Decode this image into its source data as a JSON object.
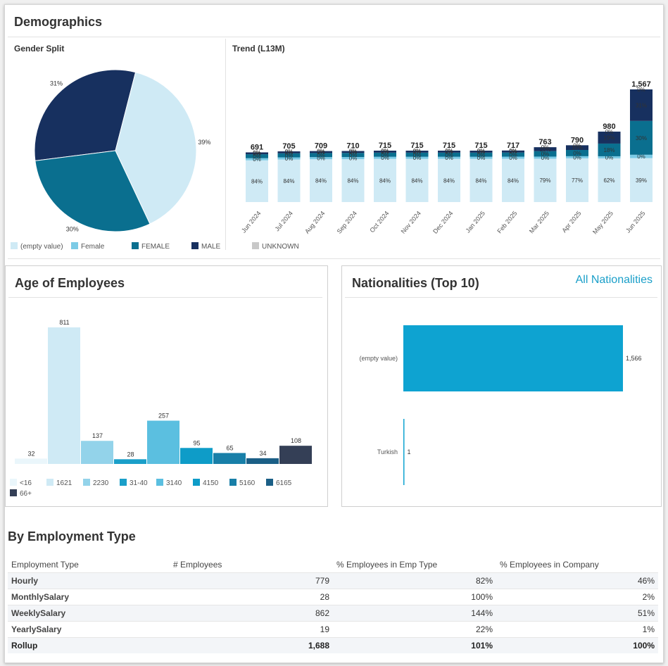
{
  "demographics": {
    "title": "Demographics",
    "gender": {
      "title": "Gender Split",
      "slices": [
        {
          "label": "31%",
          "value": 31,
          "color": "#17305f"
        },
        {
          "label": "39%",
          "value": 39,
          "color": "#cfeaf5"
        },
        {
          "label": "30%",
          "value": 30,
          "color": "#0a6f8f"
        }
      ]
    },
    "legend": [
      {
        "label": "(empty value)",
        "color": "#cfeaf5"
      },
      {
        "label": "Female",
        "color": "#7ccbe6"
      },
      {
        "label": "FEMALE",
        "color": "#0a6f8f"
      },
      {
        "label": "MALE",
        "color": "#17305f"
      },
      {
        "label": "UNKNOWN",
        "color": "#c8c8c8"
      }
    ],
    "trend": {
      "title": "Trend (L13M)",
      "months": [
        "Jun 2024",
        "Jul 2024",
        "Aug 2024",
        "Sep 2024",
        "Oct 2024",
        "Nov 2024",
        "Dec 2024",
        "Jan 2025",
        "Feb 2025",
        "Mar 2025",
        "Apr 2025",
        "May 2025",
        "Jun 2025"
      ],
      "totals": [
        "691",
        "705",
        "709",
        "710",
        "715",
        "715",
        "715",
        "715",
        "717",
        "763",
        "790",
        "980",
        "1,567"
      ],
      "total_values": [
        691,
        705,
        709,
        710,
        715,
        715,
        715,
        715,
        717,
        763,
        790,
        980,
        1567
      ],
      "empty_pct": [
        "84%",
        "84%",
        "84%",
        "84%",
        "84%",
        "84%",
        "84%",
        "84%",
        "84%",
        "79%",
        "77%",
        "62%",
        "39%"
      ],
      "empty_values": [
        84,
        84,
        84,
        84,
        84,
        84,
        84,
        84,
        84,
        79,
        77,
        62,
        39
      ],
      "female_pct": [
        "0%",
        "0%",
        "0%",
        "0%",
        "0%",
        "0%",
        "0%",
        "0%",
        "0%",
        "0%",
        "0%",
        "0%",
        "0%"
      ],
      "upper_pct": [
        [
          "0%",
          "0%",
          "0%"
        ],
        [
          "0%",
          "0%",
          "0%"
        ],
        [
          "0%",
          "0%",
          "0%"
        ],
        [
          "0%",
          "0%",
          "0%"
        ],
        [
          "0%",
          "0%",
          "0%"
        ],
        [
          "0%",
          "0%",
          "0%"
        ],
        [
          "0%",
          "0%",
          "0%"
        ],
        [
          "0%",
          "0%",
          "0%"
        ],
        [
          "0%",
          "0%",
          "0%"
        ],
        [
          "0%",
          "10%",
          "0%"
        ],
        [
          "0%",
          "10%",
          "0%"
        ],
        [
          "0%",
          "19%",
          "18%"
        ],
        [
          "0%",
          "31%",
          "30%"
        ]
      ],
      "female_cap_values": [
        8,
        8,
        8,
        8,
        8,
        8,
        8,
        8,
        8,
        10,
        11,
        18,
        30
      ],
      "male_values": [
        8,
        8,
        8,
        8,
        8,
        8,
        8,
        8,
        8,
        11,
        12,
        19,
        31
      ]
    }
  },
  "age": {
    "title": "Age of Employees",
    "chart_data": {
      "type": "bar",
      "categories": [
        "<16",
        "1621",
        "2230",
        "31-40",
        "3140",
        "4150",
        "5160",
        "6165",
        "66+"
      ],
      "values": [
        32,
        811,
        137,
        28,
        257,
        95,
        65,
        34,
        108
      ],
      "colors": [
        "#eaf6fb",
        "#cfeaf5",
        "#93d3ea",
        "#1a9fc9",
        "#5bbfe0",
        "#0e9cc8",
        "#187fa8",
        "#1b5f86",
        "#343f56"
      ]
    }
  },
  "nationalities": {
    "title": "Nationalities (Top 10)",
    "link": "All Nationalities",
    "chart_data": {
      "type": "bar",
      "categories": [
        "(empty value)",
        "Turkish"
      ],
      "values": [
        1566,
        1
      ],
      "value_labels": [
        "1,566",
        "1"
      ],
      "color": "#0ea3d1"
    }
  },
  "employment": {
    "title": "By Employment Type",
    "headers": [
      "Employment Type",
      "# Employees",
      "% Employees in Emp Type",
      "% Employees in Company"
    ],
    "rows": [
      {
        "type": "Hourly",
        "count": "779",
        "pct_type": "82%",
        "pct_company": "46%"
      },
      {
        "type": "MonthlySalary",
        "count": "28",
        "pct_type": "100%",
        "pct_company": "2%"
      },
      {
        "type": "WeeklySalary",
        "count": "862",
        "pct_type": "144%",
        "pct_company": "51%"
      },
      {
        "type": "YearlySalary",
        "count": "19",
        "pct_type": "22%",
        "pct_company": "1%"
      }
    ],
    "rollup": {
      "type": "Rollup",
      "count": "1,688",
      "pct_type": "101%",
      "pct_company": "100%"
    }
  }
}
